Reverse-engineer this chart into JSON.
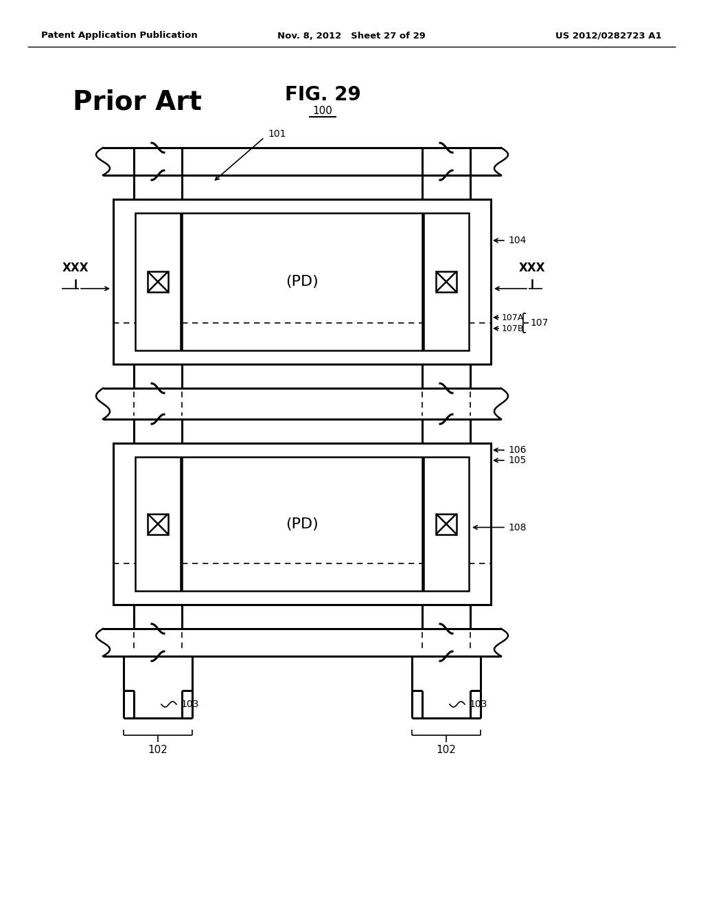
{
  "header_left": "Patent Application Publication",
  "header_mid": "Nov. 8, 2012   Sheet 27 of 29",
  "header_right": "US 2012/0282723 A1",
  "fig_label": "FIG. 29",
  "prior_art": "Prior Art",
  "label_100": "100",
  "label_101": "101",
  "label_102": "102",
  "label_103": "103",
  "label_104": "104",
  "label_105": "105",
  "label_106": "106",
  "label_107": "107",
  "label_107A": "107A",
  "label_107B": "107B",
  "label_108": "108",
  "label_xxx": "XXX",
  "label_pd": "(PD)",
  "bg_color": "#ffffff",
  "line_color": "#000000"
}
